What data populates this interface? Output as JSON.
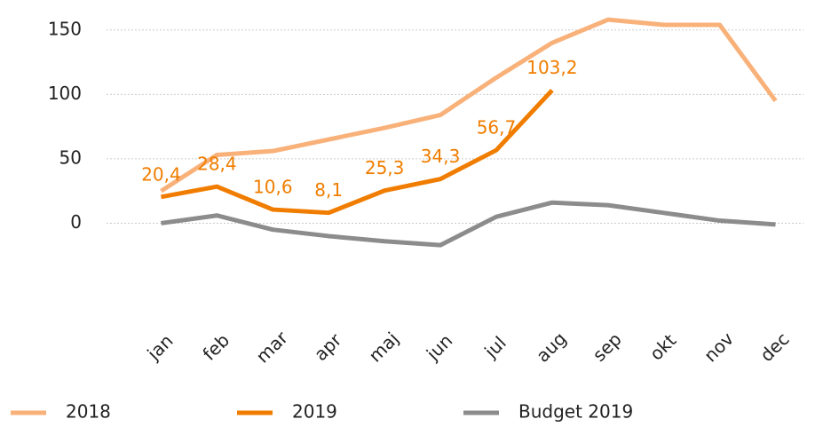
{
  "chart_data": {
    "type": "line",
    "categories": [
      "jan",
      "feb",
      "mar",
      "apr",
      "maj",
      "jun",
      "jul",
      "aug",
      "sep",
      "okt",
      "nov",
      "dec"
    ],
    "series": [
      {
        "name": "2018",
        "color": "#f9b17a",
        "values": [
          25,
          53,
          56,
          65,
          74,
          84,
          113,
          140,
          158,
          154,
          154,
          95
        ]
      },
      {
        "name": "2019",
        "color": "#f07d00",
        "values": [
          20.4,
          28.4,
          10.6,
          8.1,
          25.3,
          34.3,
          56.7,
          103.2,
          null,
          null,
          null,
          null
        ],
        "value_labels": [
          "20,4",
          "28,4",
          "10,6",
          "8,1",
          "25,3",
          "34,3",
          "56,7",
          "103,2",
          null,
          null,
          null,
          null
        ]
      },
      {
        "name": "Budget 2019",
        "color": "#8c8c8c",
        "values": [
          0,
          6,
          -5,
          -10,
          -14,
          -17,
          5,
          16,
          14,
          8,
          2,
          -1
        ]
      }
    ],
    "ylim": [
      -50,
      165
    ],
    "yticks": [
      0,
      50,
      100,
      150
    ],
    "grid": true,
    "legend": "bottom"
  }
}
